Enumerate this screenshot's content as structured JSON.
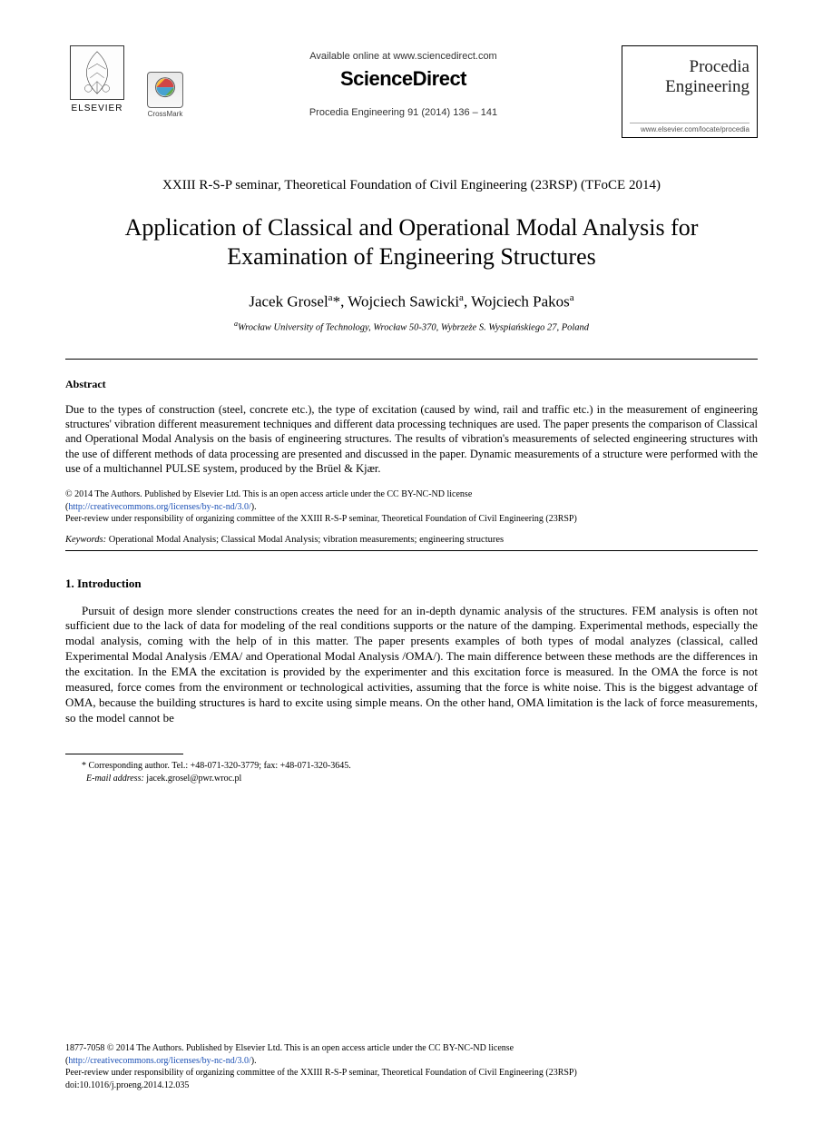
{
  "header": {
    "elsevier_label": "ELSEVIER",
    "crossmark_label": "CrossMark",
    "available_online": "Available online at www.sciencedirect.com",
    "sciencedirect": "ScienceDirect",
    "citation": "Procedia Engineering 91 (2014) 136 – 141",
    "journal_name_line1": "Procedia",
    "journal_name_line2": "Engineering",
    "journal_url": "www.elsevier.com/locate/procedia"
  },
  "seminar": "XXIII R-S-P seminar, Theoretical Foundation of Civil Engineering (23RSP) (TFoCE 2014)",
  "title": "Application of Classical and Operational Modal Analysis for Examination of Engineering Structures",
  "authors_html": "Jacek Grosel<sup>a</sup>*, Wojciech Sawicki<sup>a</sup>, Wojciech  Pakos<sup>a</sup>",
  "affiliation_html": "<sup>a</sup>Wrocław University of Technology, Wrocław 50-370, Wybrzeże S. Wyspiańskiego 27, Poland",
  "abstract": {
    "heading": "Abstract",
    "body": "Due to the types of construction (steel, concrete etc.), the type of excitation (caused by wind, rail and traffic etc.) in the measurement of engineering structures' vibration different measurement techniques and different data processing techniques are used. The paper presents the comparison of Classical and Operational Modal Analysis on the basis of engineering structures. The results of vibration's measurements of selected engineering structures with the use of different methods of data processing are presented and discussed in the paper. Dynamic measurements of a structure were performed with the use of a multichannel PULSE system, produced by the Brüel & Kjær."
  },
  "license": {
    "line1": "© 2014 The Authors. Published by Elsevier Ltd. This is an open access article under the CC BY-NC-ND license",
    "link_text": "http://creativecommons.org/licenses/by-nc-nd/3.0/",
    "line2": "Peer-review under responsibility of organizing committee of the XXIII R-S-P seminar, Theoretical Foundation of Civil Engineering (23RSP)"
  },
  "keywords": {
    "label": "Keywords:",
    "text": " Operational Modal Analysis; Classical Modal Analysis; vibration measurements; engineering structures"
  },
  "section1": {
    "heading": "1. Introduction",
    "para": "Pursuit of design more slender constructions creates the need for an in-depth dynamic analysis of the structures. FEM analysis is often not sufficient due to the lack of data for modeling of the real conditions supports or the nature of the damping. Experimental methods, especially the modal analysis, coming with the help of in this matter. The paper presents examples of both types of modal analyzes (classical, called Experimental Modal Analysis /EMA/ and Operational Modal Analysis /OMA/). The main difference between these methods are the differences in the excitation. In the EMA the excitation is provided by the experimenter and this excitation force is measured. In the OMA the force is not measured, force comes from the environment or technological activities, assuming that the force is white noise. This is the biggest advantage of OMA, because the building structures is hard to excite using simple means. On the other hand, OMA limitation is the lack of force measurements, so the model cannot be"
  },
  "footnote": {
    "corr": "* Corresponding author. Tel.: +48-071-320-3779; fax: +48-071-320-3645.",
    "email_label": "E-mail address:",
    "email": " jacek.grosel@pwr.wroc.pl"
  },
  "bottom": {
    "line1": "1877-7058 © 2014 The Authors. Published by Elsevier Ltd. This is an open access article under the CC BY-NC-ND license",
    "link_text": "http://creativecommons.org/licenses/by-nc-nd/3.0/",
    "line2": "Peer-review under responsibility of organizing committee of the XXIII R-S-P seminar, Theoretical Foundation of Civil Engineering (23RSP)",
    "doi": "doi:10.1016/j.proeng.2014.12.035"
  },
  "colors": {
    "text": "#000000",
    "link": "#1a4fb5",
    "background": "#ffffff"
  }
}
